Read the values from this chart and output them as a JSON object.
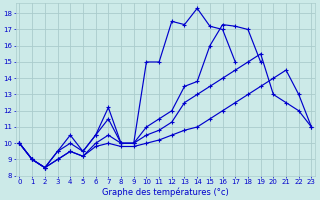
{
  "title": "Graphe des températures (°c)",
  "bg_color": "#cceae8",
  "grid_color": "#aacccc",
  "line_color": "#0000cc",
  "x_ticks": [
    0,
    1,
    2,
    3,
    4,
    5,
    6,
    7,
    8,
    9,
    10,
    11,
    12,
    13,
    14,
    15,
    16,
    17,
    18,
    19,
    20,
    21,
    22,
    23
  ],
  "y_ticks": [
    8,
    9,
    10,
    11,
    12,
    13,
    14,
    15,
    16,
    17,
    18
  ],
  "xlim": [
    -0.3,
    23.3
  ],
  "ylim": [
    8.0,
    18.6
  ],
  "series": [
    {
      "x": [
        0,
        1,
        2,
        3,
        4,
        5,
        6,
        7,
        8,
        9,
        10,
        11,
        12,
        13,
        14,
        15,
        16,
        17,
        18,
        19,
        20,
        21,
        22,
        23
      ],
      "y": [
        10,
        9,
        8.5,
        9.5,
        10.5,
        9.5,
        10.5,
        12.2,
        10,
        10,
        15,
        15,
        17.5,
        17.3,
        18.3,
        17.2,
        17.0,
        15,
        null,
        null,
        null,
        null,
        null,
        null
      ]
    },
    {
      "x": [
        0,
        1,
        2,
        3,
        4,
        5,
        6,
        7,
        8,
        9,
        10,
        11,
        12,
        13,
        14,
        15,
        16,
        17,
        18,
        19,
        20,
        21,
        22,
        23
      ],
      "y": [
        10,
        9,
        8.5,
        9.5,
        10.0,
        9.5,
        10.5,
        11.5,
        10,
        10,
        11,
        11.5,
        12,
        13.5,
        13.8,
        16.0,
        17.3,
        17.2,
        17.0,
        15.0,
        null,
        null,
        null,
        null
      ]
    },
    {
      "x": [
        0,
        1,
        2,
        3,
        4,
        5,
        6,
        7,
        8,
        9,
        10,
        11,
        12,
        13,
        14,
        15,
        16,
        17,
        18,
        19,
        20,
        21,
        22,
        23
      ],
      "y": [
        10,
        9,
        8.5,
        9.0,
        9.5,
        9.2,
        10.0,
        10.5,
        10.0,
        10.0,
        10.5,
        10.8,
        11.3,
        12.5,
        13.0,
        13.5,
        14.0,
        14.5,
        15.0,
        15.5,
        13.0,
        12.5,
        12.0,
        11.0
      ]
    },
    {
      "x": [
        0,
        1,
        2,
        3,
        4,
        5,
        6,
        7,
        8,
        9,
        10,
        11,
        12,
        13,
        14,
        15,
        16,
        17,
        18,
        19,
        20,
        21,
        22,
        23
      ],
      "y": [
        10,
        9,
        8.5,
        9.0,
        9.5,
        9.2,
        9.8,
        10.0,
        9.8,
        9.8,
        10.0,
        10.2,
        10.5,
        10.8,
        11.0,
        11.5,
        12.0,
        12.5,
        13.0,
        13.5,
        14.0,
        14.5,
        13.0,
        11.0
      ]
    }
  ]
}
